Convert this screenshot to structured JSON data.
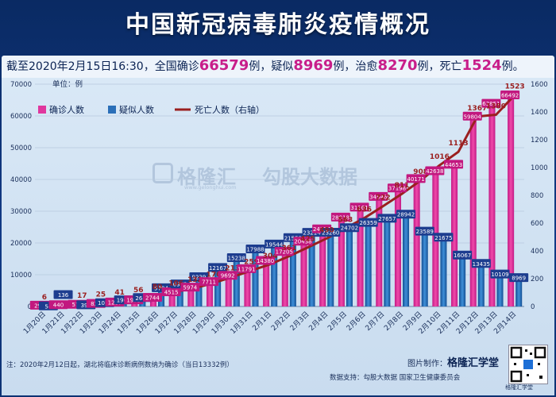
{
  "title": "中国新冠病毒肺炎疫情概况",
  "headline": {
    "prefix": "截至2020年2月15日16:30，全国确诊",
    "confirmed": "66579",
    "mid1": "例，疑似",
    "suspected": "8969",
    "mid2": "例，治愈",
    "cured": "8270",
    "mid3": "例，死亡",
    "deaths": "1524",
    "suffix": "例。"
  },
  "unit_label": "单位：例",
  "legend": {
    "confirmed": "确诊人数",
    "suspected": "疑似人数",
    "deaths": "死亡人数（右轴）"
  },
  "watermark": {
    "brand": "格隆汇",
    "url": "www.gelonghui.com",
    "partner": "勾股大数据"
  },
  "footnote": "注：2020年2月12日起，湖北将临床诊断病例数纳为确诊（当日13332例）",
  "credit": {
    "label": "图片制作：",
    "brand": "格隆汇学堂"
  },
  "source": "数据支持：勾股大数据  国家卫生健康委员会",
  "qr_label": "格隆汇学堂",
  "colors": {
    "confirmed": "#e0379e",
    "suspected": "#2a6fb8",
    "deaths": "#9a1f1f",
    "title_bg": "#0a2a63"
  },
  "chart_data": {
    "type": "bar",
    "categories": [
      "1月20日",
      "1月21日",
      "1月22日",
      "1月23日",
      "1月24日",
      "1月25日",
      "1月26日",
      "1月27日",
      "1月28日",
      "1月29日",
      "1月30日",
      "1月31日",
      "2月1日",
      "2月2日",
      "2月3日",
      "2月4日",
      "2月5日",
      "2月6日",
      "2月7日",
      "2月8日",
      "2月9日",
      "2月10日",
      "2月11日",
      "2月12日",
      "2月13日",
      "2月14日"
    ],
    "series": [
      {
        "name": "确诊人数",
        "axis": "left",
        "type": "bar",
        "values": [
          291,
          440,
          571,
          830,
          1287,
          1975,
          2744,
          4515,
          5974,
          7711,
          9692,
          11791,
          14380,
          17205,
          20438,
          24324,
          28018,
          31161,
          34546,
          37198,
          40171,
          42638,
          44653,
          59804,
          63851,
          66492
        ]
      },
      {
        "name": "疑似人数",
        "axis": "left",
        "type": "bar",
        "values": [
          54,
          null,
          393,
          1072,
          1965,
          2684,
          5794,
          6973,
          9239,
          12167,
          15238,
          17988,
          19544,
          21558,
          23214,
          23260,
          24702,
          26359,
          27657,
          28942,
          23589,
          21675,
          16067,
          13435,
          10109,
          8969
        ]
      },
      {
        "name": "死亡人数（右轴）",
        "axis": "right",
        "type": "line",
        "values": [
          6,
          9,
          17,
          25,
          41,
          56,
          80,
          106,
          132,
          170,
          213,
          259,
          304,
          361,
          425,
          490,
          563,
          636,
          722,
          811,
          908,
          1016,
          1113,
          1367,
          1380,
          1523
        ]
      }
    ],
    "extra_labels": [
      {
        "category": "1月21日",
        "value": 136
      }
    ],
    "ylim_left": [
      0,
      70000
    ],
    "yticks_left": [
      0,
      10000,
      20000,
      30000,
      40000,
      50000,
      60000,
      70000
    ],
    "ylim_right": [
      0,
      1600
    ],
    "yticks_right": [
      0,
      200,
      400,
      600,
      800,
      1000,
      1200,
      1400,
      1600
    ],
    "grid": true,
    "legend_position": "top-left"
  }
}
